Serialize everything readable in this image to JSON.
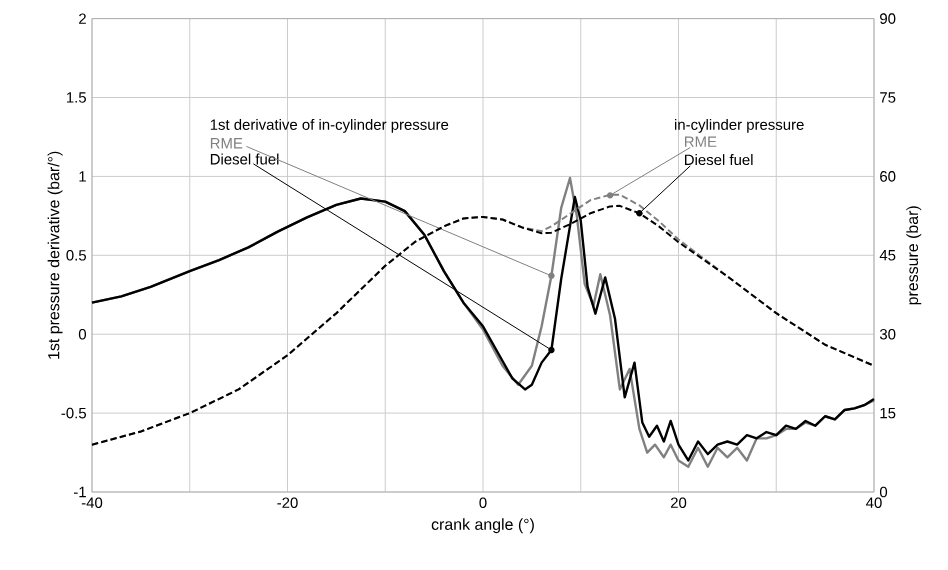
{
  "chart_data": {
    "type": "line",
    "xlabel": "crank angle (°)",
    "ylabel": "1st pressure derivative (bar/°)",
    "y2label": "pressure (bar)",
    "xlim": [
      -40,
      40
    ],
    "ylim": [
      -1,
      2
    ],
    "y2lim": [
      0,
      90
    ],
    "xticks": [
      -40,
      {
        "value": -30,
        "label": null
      },
      -20,
      {
        "value": -10,
        "label": null
      },
      0,
      {
        "value": 10,
        "label": null
      },
      20,
      {
        "value": 30,
        "label": null
      },
      40
    ],
    "yticks": [
      -1,
      -0.5,
      0,
      0.5,
      1,
      1.5,
      2
    ],
    "y2ticks": [
      0,
      15,
      30,
      45,
      60,
      75,
      90
    ],
    "grid": true,
    "legend": false,
    "annotations": [
      {
        "text": "1st derivative of in-cylinder pressure",
        "x": 7,
        "y": 0.37
      },
      {
        "text": "in-cylinder pressure",
        "x": 13,
        "y": 0.88
      }
    ],
    "series": [
      {
        "name": "RME",
        "color": "#808080",
        "line_style": "solid",
        "x": [
          -40,
          -37,
          -34,
          -30,
          -27,
          -24,
          -21,
          -18,
          -15,
          -12.5,
          -10,
          -8,
          -6,
          -4,
          -2,
          0,
          2,
          3.6,
          5,
          6,
          7,
          8,
          8.9,
          9.6,
          10.4,
          11.3,
          12,
          13,
          14,
          15,
          16,
          16.8,
          17.6,
          18.5,
          19.2,
          20,
          21,
          22,
          23,
          24,
          25,
          26,
          27,
          28,
          29,
          30,
          31,
          32,
          33,
          34,
          35,
          36,
          37,
          38,
          39,
          40
        ],
        "values": [
          0.2,
          0.24,
          0.3,
          0.4,
          0.47,
          0.55,
          0.65,
          0.74,
          0.82,
          0.86,
          0.84,
          0.78,
          0.63,
          0.4,
          0.2,
          0.03,
          -0.2,
          -0.32,
          -0.2,
          0.05,
          0.37,
          0.8,
          0.99,
          0.75,
          0.32,
          0.18,
          0.38,
          0.12,
          -0.35,
          -0.22,
          -0.6,
          -0.75,
          -0.7,
          -0.78,
          -0.7,
          -0.8,
          -0.84,
          -0.72,
          -0.84,
          -0.72,
          -0.78,
          -0.72,
          -0.8,
          -0.66,
          -0.66,
          -0.64,
          -0.6,
          -0.6,
          -0.56,
          -0.58,
          -0.52,
          -0.54,
          -0.48,
          -0.47,
          -0.45,
          -0.42
        ]
      },
      {
        "name": "Diesel fuel",
        "color": "#000000",
        "line_style": "solid",
        "x": [
          -40,
          -37,
          -34,
          -30,
          -27,
          -24,
          -21,
          -18,
          -15,
          -12.5,
          -10,
          -8,
          -6,
          -4,
          -2,
          0,
          2,
          3,
          4.3,
          5,
          6,
          7,
          8,
          9.4,
          10,
          10.7,
          11.5,
          12.5,
          13.5,
          14.5,
          15.5,
          16.3,
          17,
          17.8,
          18.5,
          19.2,
          20,
          21,
          22,
          23,
          24,
          25,
          26,
          27,
          28,
          29,
          30,
          31,
          32,
          33,
          34,
          35,
          36,
          37,
          38,
          39,
          40
        ],
        "values": [
          0.2,
          0.24,
          0.3,
          0.4,
          0.47,
          0.55,
          0.65,
          0.74,
          0.82,
          0.86,
          0.84,
          0.78,
          0.63,
          0.4,
          0.2,
          0.05,
          -0.17,
          -0.28,
          -0.35,
          -0.32,
          -0.18,
          -0.1,
          0.35,
          0.87,
          0.72,
          0.3,
          0.13,
          0.36,
          0.1,
          -0.4,
          -0.18,
          -0.56,
          -0.65,
          -0.58,
          -0.68,
          -0.55,
          -0.7,
          -0.8,
          -0.68,
          -0.76,
          -0.7,
          -0.68,
          -0.7,
          -0.64,
          -0.66,
          -0.62,
          -0.64,
          -0.58,
          -0.6,
          -0.55,
          -0.58,
          -0.52,
          -0.54,
          -0.48,
          -0.47,
          -0.45,
          -0.41
        ]
      },
      {
        "name": "RME",
        "color": "#808080",
        "line_style": "dashed",
        "axis": "y2",
        "x": [
          -40,
          -35,
          -30,
          -25,
          -20,
          -15,
          -10,
          -7,
          -4,
          -2,
          0,
          2,
          4,
          6,
          7,
          9,
          11,
          13,
          14,
          16,
          18,
          20,
          25,
          30,
          35,
          40
        ],
        "values": [
          9,
          11.5,
          15,
          19.5,
          26,
          34,
          43,
          47.5,
          50.5,
          52,
          52.3,
          51.8,
          50.3,
          49.6,
          50.5,
          53,
          55.5,
          56.5,
          56.5,
          54.5,
          51.5,
          48,
          41,
          34,
          28,
          24
        ]
      },
      {
        "name": "Diesel fuel",
        "color": "#000000",
        "line_style": "dashed",
        "axis": "y2",
        "x": [
          -40,
          -35,
          -30,
          -25,
          -20,
          -15,
          -10,
          -7,
          -4,
          -2,
          0,
          2,
          4,
          6,
          7,
          9,
          11,
          13,
          14,
          16,
          18,
          20,
          25,
          30,
          35,
          40
        ],
        "values": [
          9,
          11.5,
          15,
          19.5,
          26,
          34,
          43,
          47.5,
          50.5,
          52,
          52.3,
          51.8,
          50.3,
          49.2,
          49.3,
          51,
          53,
          54.3,
          54.4,
          53,
          50.5,
          47.5,
          41,
          34,
          28,
          24
        ]
      }
    ]
  }
}
